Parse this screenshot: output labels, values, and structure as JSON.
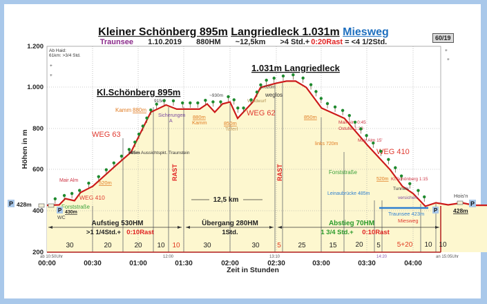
{
  "header": {
    "title_part1": "Kleiner Schönberg 895m",
    "title_part2": "Langriedleck 1.031m",
    "title_part3": "Miesweg",
    "subtitle": {
      "region": "Traunsee",
      "date": "1.10.2019",
      "ascent": "880HM",
      "distance": "~12,5km",
      "time": ">4 Std.+",
      "rest": "0:20Rast",
      "total": "= <4 1/2Std."
    },
    "badge": "60/19"
  },
  "chart_data": {
    "type": "area",
    "title": "Kleiner Schönberg 895m Langriedleck 1.031m Miesweg",
    "xlabel": "Zeit in Stunden",
    "ylabel": "Höhen in m",
    "ylim": [
      200,
      1200
    ],
    "yticks": [
      "200",
      "400",
      "600",
      "800",
      "1.000",
      "1.200"
    ],
    "xticks": [
      "00:00",
      "00:30",
      "01:00",
      "01:30",
      "02:00",
      "02:30",
      "03:00",
      "03:30",
      "04:00"
    ],
    "grid": true,
    "profile_minutes": [
      0,
      8,
      12,
      18,
      22,
      30,
      45,
      55,
      68,
      78,
      85,
      90,
      95,
      100,
      105,
      110,
      115,
      120,
      125,
      135,
      140,
      150,
      157,
      163,
      170,
      180,
      195,
      210,
      225,
      233,
      240,
      248,
      255,
      263,
      272,
      280,
      290,
      295
    ],
    "profile_elevation": [
      428,
      430,
      460,
      450,
      490,
      520,
      620,
      685,
      880,
      915,
      895,
      895,
      895,
      895,
      920,
      880,
      920,
      930,
      850,
      930,
      1000,
      1020,
      1031,
      1031,
      1000,
      900,
      850,
      720,
      600,
      520,
      485,
      423,
      440,
      430,
      440,
      428,
      428,
      428
    ],
    "segments_minutes": [
      "30",
      "20",
      "20",
      "10",
      "10",
      "30",
      "30",
      "5",
      "25",
      "15",
      "20",
      "5",
      "5+20",
      "10",
      "10"
    ],
    "rest_segments": [
      4,
      7,
      12
    ],
    "sections": [
      {
        "label": "Aufstieg 530HM",
        "sub": ">1 1/4Std.+",
        "rest": "0:10Rast"
      },
      {
        "label": "Übergang 280HM",
        "sub": "1Std.",
        "rest": ""
      },
      {
        "label": "Abstieg 70HM",
        "sub": "1 3/4 Std.+",
        "rest": "0:10Rast"
      }
    ],
    "annotations": {
      "start_note": "Ab Haid:",
      "start_note2": "61km: >3/4 Std.",
      "peak1": "Kl.Schönberg 895m",
      "peak2": "1.031m Langriedleck",
      "kamm1": "Kamm",
      "kamm1_h": "880m",
      "p915": "915m",
      "sicherungen": "Sicherungen",
      "a": "A",
      "kamm2_h": "880m",
      "kamm2": "Kamm",
      "p930": "~930m",
      "p850a": "850m",
      "taferl": "Taferl",
      "p1020": "1.020m",
      "weglos": "weglos",
      "windwurf": "Windwurf",
      "weg62": "WEG 62",
      "weg63": "WEG 63",
      "weg410a": "WEG 410",
      "weg410b": "WEG 410",
      "p850b": "850m",
      "mairalm045": "Mair Alm 0:45",
      "ostufer": "Ostufer 1:30",
      "links720": "links 720m",
      "mairalm15": "Mair Alm 15'",
      "forststrasse1": "Forststraße",
      "forststrasse2": "Forststraße",
      "p520a": "520m",
      "klschoen115": "Kl.Schönberg 1:15",
      "tunnels": "Tunnels",
      "leinaubruecke": "Leinaubrücke 485m",
      "versichert": "versichert",
      "traunsee": "Traunsee 423m",
      "miesweg": "Miesweg",
      "hoisn": "Hois'n",
      "p428r": "428m",
      "p428l": "428m",
      "p430": "430m",
      "wc": "WC",
      "mairalm": "Mair Alm",
      "p520b": "520m",
      "p685": "685m",
      "aussicht": "Aussichtspkt. Traunstein",
      "rast": "RAST",
      "dist": "12,5 km",
      "start_time": "ab 10:50Uhr",
      "t1200": "12:00",
      "t1310": "13:10",
      "t1420": "14:20",
      "end_time": "an 15:05Uhr",
      "parking": "P"
    }
  }
}
